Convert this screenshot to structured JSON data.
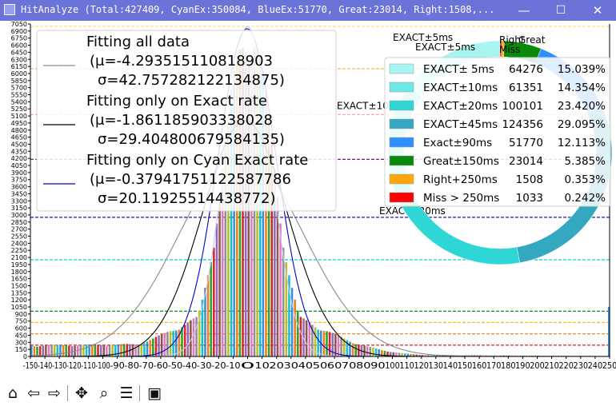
{
  "window": {
    "title": "HitAnalyze (Total:427409,  CyanEx:350084,  BlueEx:51770,  Great:23014,  Right:1508,...",
    "minimize": "—",
    "maximize": "☐",
    "close": "✕"
  },
  "toolbar": {
    "buttons": [
      {
        "name": "home-icon",
        "glyph": "⌂"
      },
      {
        "name": "back-icon",
        "glyph": "⇦"
      },
      {
        "name": "forward-icon",
        "glyph": "⇨"
      },
      {
        "name": "pan-icon",
        "glyph": "✥"
      },
      {
        "name": "zoom-icon",
        "glyph": "⌕"
      },
      {
        "name": "configure-icon",
        "glyph": "☰"
      },
      {
        "name": "save-icon",
        "glyph": "▣"
      }
    ]
  },
  "chart_data": [
    {
      "type": "bar",
      "xlabel": "",
      "x_ticks": [
        -150,
        -140,
        -130,
        -120,
        -110,
        -100,
        -90,
        -80,
        -70,
        -60,
        -50,
        -40,
        -30,
        -20,
        -10,
        0,
        10,
        20,
        30,
        40,
        50,
        60,
        70,
        80,
        90,
        100,
        110,
        120,
        130,
        140,
        150,
        160,
        170,
        180,
        190,
        200,
        210,
        220,
        230,
        240,
        250
      ],
      "xlim": [
        -150,
        250
      ],
      "ylim": [
        0,
        7050
      ],
      "y_ticks_step": 150,
      "bar_width_ms": 2,
      "bar_colors": [
        "#3a8fd6",
        "#ef7f1a",
        "#2ca02c",
        "#d62728",
        "#9467bd",
        "#8c564b",
        "#e377c2",
        "#8f8f8f",
        "#bcbd22",
        "#17becf"
      ],
      "tail_left_value": 230,
      "tail_right_value": 90,
      "end_spike": {
        "x": 250,
        "value": 1050
      },
      "core_sigma": 17,
      "core_peak": 6900,
      "fits": [
        {
          "label": "Fitting all data",
          "mu_text": "(μ=-4.293515110818903",
          "sigma_text": "σ=42.757282122134875)",
          "mu": -4.293515110818903,
          "sigma": 42.757282122134875,
          "peak": 4300,
          "color": "#8a8a8a"
        },
        {
          "label": "Fitting only on Exact rate",
          "mu_text": "(μ=-1.861185903338028",
          "sigma_text": "σ=29.404800679584135)",
          "mu": -1.861185903338028,
          "sigma": 29.404800679584135,
          "peak": 5000,
          "color": "#000000"
        },
        {
          "label": "Fitting only on Cyan Exact rate",
          "mu_text": "(μ=-0.37941751122587786",
          "sigma_text": "σ=20.11925514438772)",
          "mu": -0.37941751122587786,
          "sigma": 20.11925514438772,
          "peak": 6950,
          "color": "#0000cc"
        },
        {
          "label": "",
          "mu": 0,
          "sigma": 16,
          "peak": 7000,
          "color": "#c8c8f0"
        }
      ],
      "h_lines": [
        {
          "y": 240,
          "color": "#d62728",
          "label": ""
        },
        {
          "y": 480,
          "color": "#ef7f1a",
          "label": ""
        },
        {
          "y": 720,
          "color": "#ffbb00",
          "label": ""
        },
        {
          "y": 960,
          "color": "#1a8a1a",
          "label": ""
        },
        {
          "y": 2050,
          "color": "#00d0d0",
          "label": ""
        },
        {
          "y": 2950,
          "color": "#0000aa",
          "label": "EXACT±20ms"
        },
        {
          "y": 4180,
          "color": "#7a1a7a",
          "label": ""
        },
        {
          "y": 5130,
          "color": "#ff9999",
          "label": "EXACT±10ms"
        },
        {
          "y": 6100,
          "color": "#ffaa44",
          "label": ""
        },
        {
          "y": 7000,
          "color": "#ffe066",
          "label": "EXACT±5ms"
        }
      ]
    },
    {
      "type": "pie",
      "labels": [
        "EXACT± 5ms",
        "EXACT±10ms",
        "EXACT±20ms",
        "EXACT±45ms",
        "Exact±90ms",
        "Great±150ms",
        "Right+250ms",
        "Miss > 250ms"
      ],
      "values": [
        64276,
        61351,
        100101,
        124356,
        51770,
        23014,
        1508,
        1033
      ],
      "percent_text": [
        "15.039%",
        "14.354%",
        "23.420%",
        "29.095%",
        "12.113%",
        "5.385%",
        "0.353%",
        "0.242%"
      ],
      "colors": [
        "#a6f5f0",
        "#6be8e8",
        "#2ed6d6",
        "#33a8c0",
        "#2f8fff",
        "#0a8a0a",
        "#ffa60a",
        "#ff0000"
      ],
      "outer_labels": [
        "EXACT±5ms",
        "Right",
        "Miss",
        "Great"
      ],
      "legend_location": "top-right"
    }
  ]
}
